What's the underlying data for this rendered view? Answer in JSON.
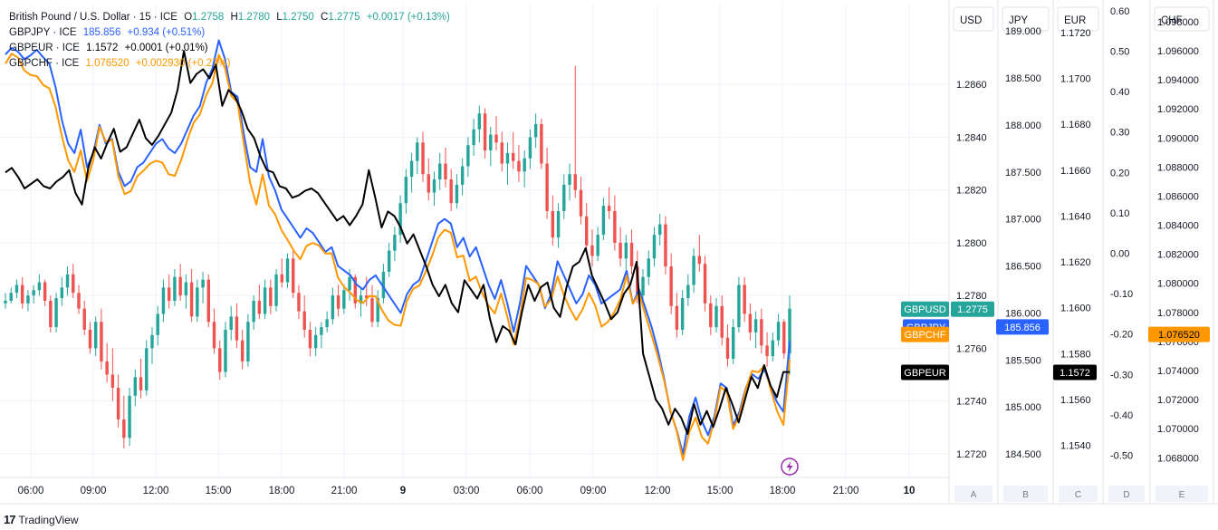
{
  "legend": {
    "main": {
      "symbol": "British Pound / U.S. Dollar · 15 · ICE",
      "o_label": "O",
      "o": "1.2758",
      "h_label": "H",
      "h": "1.2780",
      "l_label": "L",
      "l": "1.2750",
      "c_label": "C",
      "c": "1.2775",
      "change": "+0.0017 (+0.13%)"
    },
    "compare": [
      {
        "symbol": "GBPJPY · ICE",
        "value": "185.856",
        "change": "+0.934 (+0.51%)",
        "color": "#2962ff"
      },
      {
        "symbol": "GBPEUR · ICE",
        "value": "1.1572",
        "change": "+0.0001 (+0.01%)",
        "color": "#000000"
      },
      {
        "symbol": "GBPCHF · ICE",
        "value": "1.076520",
        "change": "+0.002930 (+0.27%)",
        "color": "#ff9800"
      }
    ]
  },
  "colors": {
    "up": "#26a69a",
    "down": "#ef5350",
    "gbpjpy": "#2962ff",
    "gbpeur": "#000000",
    "gbpchf": "#ff9800",
    "grid": "#f0f3fa",
    "axis_text": "#131722"
  },
  "scales": [
    {
      "header": "USD",
      "footer": "A",
      "ticks": [
        "1.2860",
        "1.2840",
        "1.2820",
        "1.2800",
        "1.2780",
        "1.2760",
        "1.2740",
        "1.2720"
      ],
      "range": [
        1.2711,
        1.2891
      ]
    },
    {
      "header": "JPY",
      "footer": "B",
      "ticks": [
        "189.000",
        "188.500",
        "188.000",
        "187.500",
        "187.000",
        "186.500",
        "186.000",
        "185.500",
        "185.000",
        "184.500"
      ],
      "range": [
        184.25,
        189.3
      ]
    },
    {
      "header": "EUR",
      "footer": "C",
      "ticks": [
        "1.1720",
        "1.1700",
        "1.1680",
        "1.1660",
        "1.1640",
        "1.1620",
        "1.1600",
        "1.1580",
        "1.1560",
        "1.1540"
      ],
      "range": [
        1.1526,
        1.1733
      ]
    },
    {
      "header": "",
      "footer": "D",
      "ticks": [
        "0.60",
        "0.50",
        "0.40",
        "0.30",
        "0.20",
        "0.10",
        "0.00",
        "-0.10",
        "-0.20",
        "-0.30",
        "-0.40",
        "-0.50"
      ],
      "range": [
        -0.555,
        0.62
      ]
    },
    {
      "header": "CHF",
      "footer": "E",
      "ticks": [
        "1.098000",
        "1.096000",
        "1.094000",
        "1.092000",
        "1.090000",
        "1.088000",
        "1.086000",
        "1.084000",
        "1.082000",
        "1.080000",
        "1.078000",
        "1.076000",
        "1.074000",
        "1.072000",
        "1.070000",
        "1.068000"
      ],
      "range": [
        1.06665,
        1.0993
      ]
    }
  ],
  "badges": [
    {
      "label": "GBPUSD",
      "value": "1.2775"
    },
    {
      "label": "GBPJPY",
      "value": "185.856"
    },
    {
      "label": "GBPCHF",
      "value": "1.076520"
    },
    {
      "label": "GBPEUR",
      "value": "1.1572"
    }
  ],
  "time_axis": [
    "06:00",
    "09:00",
    "12:00",
    "15:00",
    "18:00",
    "21:00",
    "9",
    "03:00",
    "06:00",
    "09:00",
    "12:00",
    "15:00",
    "18:00",
    "21:00",
    "10"
  ],
  "brand": "TradingView",
  "chart_data": {
    "type": "candlestick",
    "interval": "15",
    "y_scale_usd": [
      1.2711,
      1.2891
    ],
    "time_labels": [
      "06:00",
      "09:00",
      "12:00",
      "15:00",
      "18:00",
      "21:00",
      "9",
      "03:00",
      "06:00",
      "09:00",
      "12:00",
      "15:00",
      "18:00",
      "21:00",
      "10"
    ],
    "gbpusd_ohlc": [
      [
        1.2777,
        1.2781,
        1.2775,
        1.2778
      ],
      [
        1.2778,
        1.2783,
        1.2777,
        1.2781
      ],
      [
        1.2781,
        1.2786,
        1.2779,
        1.2784
      ],
      [
        1.2784,
        1.2787,
        1.2775,
        1.2777
      ],
      [
        1.2777,
        1.2782,
        1.2774,
        1.278
      ],
      [
        1.278,
        1.2784,
        1.2777,
        1.2782
      ],
      [
        1.2782,
        1.2788,
        1.278,
        1.2785
      ],
      [
        1.2785,
        1.2786,
        1.2776,
        1.2778
      ],
      [
        1.2778,
        1.278,
        1.2766,
        1.2768
      ],
      [
        1.2768,
        1.2781,
        1.2766,
        1.2779
      ],
      [
        1.2779,
        1.2787,
        1.2776,
        1.2783
      ],
      [
        1.2783,
        1.2791,
        1.278,
        1.2788
      ],
      [
        1.2788,
        1.2792,
        1.2779,
        1.2781
      ],
      [
        1.2781,
        1.2784,
        1.2773,
        1.2775
      ],
      [
        1.2775,
        1.2778,
        1.2765,
        1.2767
      ],
      [
        1.2767,
        1.277,
        1.2758,
        1.276
      ],
      [
        1.276,
        1.2772,
        1.2757,
        1.277
      ],
      [
        1.277,
        1.2775,
        1.2752,
        1.2755
      ],
      [
        1.2755,
        1.2762,
        1.2747,
        1.275
      ],
      [
        1.275,
        1.276,
        1.274,
        1.2745
      ],
      [
        1.2745,
        1.275,
        1.273,
        1.2733
      ],
      [
        1.2733,
        1.2742,
        1.2722,
        1.2726
      ],
      [
        1.2726,
        1.2745,
        1.2723,
        1.2742
      ],
      [
        1.2742,
        1.2752,
        1.2738,
        1.2749
      ],
      [
        1.2749,
        1.2756,
        1.2741,
        1.2744
      ],
      [
        1.2744,
        1.2763,
        1.2742,
        1.276
      ],
      [
        1.276,
        1.2768,
        1.2754,
        1.2765
      ],
      [
        1.2765,
        1.2776,
        1.2761,
        1.2773
      ],
      [
        1.2773,
        1.2786,
        1.277,
        1.2783
      ],
      [
        1.2783,
        1.2788,
        1.2775,
        1.2778
      ],
      [
        1.2778,
        1.279,
        1.2776,
        1.2787
      ],
      [
        1.2787,
        1.2792,
        1.2778,
        1.278
      ],
      [
        1.278,
        1.2788,
        1.2775,
        1.2785
      ],
      [
        1.2785,
        1.279,
        1.277,
        1.2772
      ],
      [
        1.2772,
        1.2786,
        1.277,
        1.2783
      ],
      [
        1.2783,
        1.2789,
        1.2777,
        1.2786
      ],
      [
        1.2786,
        1.2788,
        1.2768,
        1.277
      ],
      [
        1.277,
        1.2775,
        1.2758,
        1.276
      ],
      [
        1.276,
        1.2763,
        1.2748,
        1.2751
      ],
      [
        1.2751,
        1.277,
        1.2749,
        1.2767
      ],
      [
        1.2767,
        1.2776,
        1.2763,
        1.2772
      ],
      [
        1.2772,
        1.2777,
        1.276,
        1.2763
      ],
      [
        1.2763,
        1.2767,
        1.2752,
        1.2755
      ],
      [
        1.2755,
        1.2773,
        1.2753,
        1.277
      ],
      [
        1.277,
        1.278,
        1.2767,
        1.2778
      ],
      [
        1.2778,
        1.2784,
        1.2771,
        1.2773
      ],
      [
        1.2773,
        1.2786,
        1.2771,
        1.2783
      ],
      [
        1.2783,
        1.2786,
        1.2773,
        1.2776
      ],
      [
        1.2776,
        1.279,
        1.2774,
        1.2788
      ],
      [
        1.2788,
        1.2794,
        1.2783,
        1.2785
      ],
      [
        1.2785,
        1.2796,
        1.2783,
        1.2794
      ],
      [
        1.2794,
        1.2797,
        1.2779,
        1.2781
      ],
      [
        1.2781,
        1.2784,
        1.2771,
        1.2774
      ],
      [
        1.2774,
        1.278,
        1.2764,
        1.2767
      ],
      [
        1.2767,
        1.277,
        1.2757,
        1.276
      ],
      [
        1.276,
        1.2768,
        1.2757,
        1.2765
      ],
      [
        1.2765,
        1.277,
        1.276,
        1.2768
      ],
      [
        1.2768,
        1.2774,
        1.2766,
        1.2771
      ],
      [
        1.2771,
        1.2783,
        1.2769,
        1.278
      ],
      [
        1.278,
        1.2784,
        1.2772,
        1.2775
      ],
      [
        1.2775,
        1.2784,
        1.2773,
        1.2782
      ],
      [
        1.2782,
        1.279,
        1.2778,
        1.2787
      ],
      [
        1.2787,
        1.2788,
        1.2775,
        1.2777
      ],
      [
        1.2777,
        1.2783,
        1.2772,
        1.278
      ],
      [
        1.278,
        1.2787,
        1.2776,
        1.2779
      ],
      [
        1.2779,
        1.2784,
        1.2768,
        1.277
      ],
      [
        1.277,
        1.2782,
        1.2768,
        1.2779
      ],
      [
        1.2779,
        1.2792,
        1.2777,
        1.2789
      ],
      [
        1.2789,
        1.28,
        1.2787,
        1.2797
      ],
      [
        1.2797,
        1.2806,
        1.2793,
        1.2803
      ],
      [
        1.2803,
        1.2818,
        1.28,
        1.2815
      ],
      [
        1.2815,
        1.2828,
        1.2811,
        1.2825
      ],
      [
        1.2825,
        1.2834,
        1.2819,
        1.2831
      ],
      [
        1.2831,
        1.284,
        1.2826,
        1.2838
      ],
      [
        1.2838,
        1.2842,
        1.2823,
        1.2826
      ],
      [
        1.2826,
        1.2832,
        1.2816,
        1.2819
      ],
      [
        1.2819,
        1.2827,
        1.2814,
        1.2824
      ],
      [
        1.2824,
        1.2834,
        1.282,
        1.283
      ],
      [
        1.283,
        1.2836,
        1.2821,
        1.2824
      ],
      [
        1.2824,
        1.2828,
        1.2812,
        1.2815
      ],
      [
        1.2815,
        1.2826,
        1.2813,
        1.2822
      ],
      [
        1.2822,
        1.2832,
        1.2818,
        1.2829
      ],
      [
        1.2829,
        1.284,
        1.2825,
        1.2837
      ],
      [
        1.2837,
        1.2847,
        1.2833,
        1.2843
      ],
      [
        1.2843,
        1.2852,
        1.2838,
        1.2849
      ],
      [
        1.2849,
        1.2851,
        1.2832,
        1.2835
      ],
      [
        1.2835,
        1.2844,
        1.2829,
        1.2841
      ],
      [
        1.2841,
        1.2848,
        1.2835,
        1.2838
      ],
      [
        1.2838,
        1.2842,
        1.2827,
        1.283
      ],
      [
        1.283,
        1.2838,
        1.2822,
        1.2834
      ],
      [
        1.2834,
        1.2842,
        1.2828,
        1.2831
      ],
      [
        1.2831,
        1.2837,
        1.2823,
        1.2827
      ],
      [
        1.2827,
        1.2835,
        1.2821,
        1.2832
      ],
      [
        1.2832,
        1.2843,
        1.2828,
        1.284
      ],
      [
        1.284,
        1.2849,
        1.2836,
        1.2845
      ],
      [
        1.2845,
        1.2847,
        1.2828,
        1.283
      ],
      [
        1.283,
        1.2836,
        1.2809,
        1.2812
      ],
      [
        1.2812,
        1.2818,
        1.2799,
        1.2802
      ],
      [
        1.2802,
        1.2815,
        1.2798,
        1.2812
      ],
      [
        1.2812,
        1.2826,
        1.2809,
        1.2822
      ],
      [
        1.2822,
        1.283,
        1.2816,
        1.2826
      ],
      [
        1.2826,
        1.2867,
        1.2817,
        1.282
      ],
      [
        1.282,
        1.2825,
        1.2807,
        1.281
      ],
      [
        1.281,
        1.2815,
        1.2796,
        1.2799
      ],
      [
        1.2799,
        1.2805,
        1.2791,
        1.2795
      ],
      [
        1.2795,
        1.2806,
        1.2793,
        1.2803
      ],
      [
        1.2803,
        1.2817,
        1.2801,
        1.2814
      ],
      [
        1.2814,
        1.2821,
        1.2809,
        1.2812
      ],
      [
        1.2812,
        1.2818,
        1.2797,
        1.28
      ],
      [
        1.28,
        1.2806,
        1.2791,
        1.2794
      ],
      [
        1.2794,
        1.2803,
        1.279,
        1.28
      ],
      [
        1.28,
        1.2805,
        1.2788,
        1.2791
      ],
      [
        1.2791,
        1.2797,
        1.2777,
        1.278
      ],
      [
        1.278,
        1.279,
        1.2776,
        1.2787
      ],
      [
        1.2787,
        1.2797,
        1.2784,
        1.2794
      ],
      [
        1.2794,
        1.2806,
        1.2791,
        1.2803
      ],
      [
        1.2803,
        1.2811,
        1.2799,
        1.2807
      ],
      [
        1.2807,
        1.281,
        1.2788,
        1.2791
      ],
      [
        1.2791,
        1.2796,
        1.2773,
        1.2776
      ],
      [
        1.2776,
        1.2781,
        1.2764,
        1.2767
      ],
      [
        1.2767,
        1.2782,
        1.2765,
        1.2779
      ],
      [
        1.2779,
        1.2788,
        1.2776,
        1.2784
      ],
      [
        1.2784,
        1.2798,
        1.2781,
        1.2795
      ],
      [
        1.2795,
        1.2803,
        1.2789,
        1.2792
      ],
      [
        1.2792,
        1.2795,
        1.2774,
        1.2777
      ],
      [
        1.2777,
        1.278,
        1.2765,
        1.2768
      ],
      [
        1.2768,
        1.2779,
        1.2766,
        1.2776
      ],
      [
        1.2776,
        1.278,
        1.2761,
        1.2764
      ],
      [
        1.2764,
        1.2769,
        1.2753,
        1.2756
      ],
      [
        1.2756,
        1.2771,
        1.2754,
        1.2768
      ],
      [
        1.2768,
        1.2787,
        1.2766,
        1.2784
      ],
      [
        1.2784,
        1.2787,
        1.277,
        1.2773
      ],
      [
        1.2773,
        1.2777,
        1.2763,
        1.2766
      ],
      [
        1.2766,
        1.2774,
        1.276,
        1.2771
      ],
      [
        1.2771,
        1.2775,
        1.2758,
        1.2761
      ],
      [
        1.2761,
        1.2766,
        1.2753,
        1.2757
      ],
      [
        1.2757,
        1.2766,
        1.2755,
        1.2763
      ],
      [
        1.2763,
        1.2773,
        1.2761,
        1.277
      ],
      [
        1.277,
        1.2771,
        1.2756,
        1.2758
      ],
      [
        1.2758,
        1.278,
        1.275,
        1.2775
      ]
    ],
    "gbpjpy_line": [
      188.75,
      188.82,
      188.78,
      188.7,
      188.74,
      188.8,
      188.72,
      188.65,
      188.4,
      188.05,
      187.8,
      187.7,
      187.95,
      187.55,
      187.7,
      188.0,
      187.8,
      187.85,
      187.5,
      187.35,
      187.4,
      187.55,
      187.6,
      187.7,
      187.8,
      187.85,
      187.75,
      187.7,
      187.8,
      187.95,
      188.1,
      188.2,
      188.45,
      188.6,
      188.9,
      188.7,
      188.35,
      188.3,
      187.9,
      187.55,
      187.5,
      187.85,
      187.45,
      187.3,
      187.1,
      187.0,
      186.9,
      186.8,
      186.9,
      186.85,
      186.75,
      186.65,
      186.7,
      186.5,
      186.45,
      186.4,
      186.3,
      186.25,
      186.35,
      186.4,
      186.3,
      186.2,
      186.1,
      186.0,
      186.2,
      186.3,
      186.35,
      186.55,
      186.75,
      186.95,
      187.0,
      186.95,
      186.7,
      186.8,
      186.6,
      186.7,
      186.5,
      186.3,
      186.15,
      186.35,
      186.1,
      185.8,
      186.1,
      186.5,
      186.4,
      186.3,
      186.05,
      186.2,
      186.55,
      186.4,
      186.25,
      186.1,
      186.2,
      186.4,
      186.3,
      186.1,
      186.15,
      186.2,
      186.25,
      186.45,
      186.1,
      186.25,
      186.05,
      185.85,
      185.6,
      185.3,
      184.95,
      184.75,
      184.5,
      184.9,
      185.1,
      184.85,
      184.7,
      184.9,
      185.25,
      185.2,
      184.8,
      184.95,
      185.2,
      185.35,
      185.3,
      185.4,
      185.2,
      185.05,
      184.95,
      185.7
    ],
    "gbpeur_line": [
      1.1659,
      1.1661,
      1.1657,
      1.1652,
      1.1654,
      1.1656,
      1.1653,
      1.1652,
      1.1655,
      1.1657,
      1.166,
      1.165,
      1.1645,
      1.1661,
      1.167,
      1.1665,
      1.1672,
      1.1678,
      1.1668,
      1.167,
      1.1676,
      1.1682,
      1.1674,
      1.1671,
      1.1675,
      1.168,
      1.1685,
      1.1695,
      1.1712,
      1.1698,
      1.1702,
      1.1704,
      1.17,
      1.1706,
      1.1688,
      1.1695,
      1.1692,
      1.1686,
      1.1678,
      1.1674,
      1.1666,
      1.166,
      1.1659,
      1.1653,
      1.1652,
      1.1648,
      1.1649,
      1.1651,
      1.1652,
      1.165,
      1.1646,
      1.1642,
      1.1638,
      1.164,
      1.1636,
      1.164,
      1.1645,
      1.166,
      1.1648,
      1.1635,
      1.1642,
      1.164,
      1.1635,
      1.1628,
      1.1632,
      1.1625,
      1.1618,
      1.161,
      1.1605,
      1.161,
      1.1602,
      1.1598,
      1.1612,
      1.1608,
      1.1604,
      1.161,
      1.1595,
      1.1585,
      1.1592,
      1.159,
      1.1584,
      1.1598,
      1.161,
      1.1603,
      1.1609,
      1.1611,
      1.16,
      1.1596,
      1.1609,
      1.1618,
      1.162,
      1.1626,
      1.1614,
      1.1608,
      1.1602,
      1.1595,
      1.1598,
      1.1606,
      1.161,
      1.162,
      1.158,
      1.157,
      1.156,
      1.1556,
      1.1549,
      1.1556,
      1.1552,
      1.1545,
      1.1558,
      1.1549,
      1.1555,
      1.1548,
      1.1556,
      1.1565,
      1.1558,
      1.155,
      1.156,
      1.157,
      1.1565,
      1.1575,
      1.1566,
      1.1561,
      1.1572,
      1.1572
    ]
  }
}
